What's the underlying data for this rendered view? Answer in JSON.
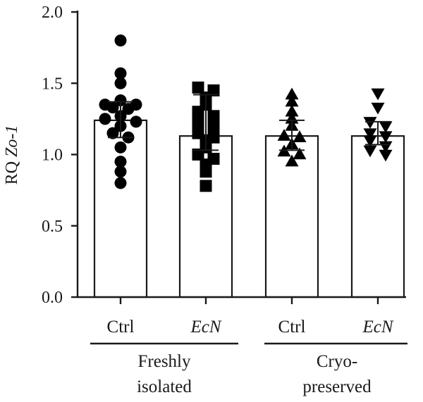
{
  "chart_data": {
    "type": "bar",
    "ylabel_prefix": "RQ ",
    "ylabel_gene": "Zo-1",
    "ylim": [
      0,
      2.0
    ],
    "yticks": [
      "0.0",
      "0.5",
      "1.0",
      "1.5",
      "2.0"
    ],
    "categories": [
      "Ctrl",
      "EcN",
      "Ctrl",
      "EcN"
    ],
    "category_italic": [
      false,
      true,
      false,
      true
    ],
    "groups": [
      {
        "line1": "Freshly",
        "line2": "isolated",
        "spans": [
          0,
          1
        ]
      },
      {
        "line1": "Cryo-",
        "line2": "preserved",
        "spans": [
          2,
          3
        ]
      }
    ],
    "bars": [
      {
        "mean": 1.24,
        "err_low": 1.12,
        "err_high": 1.37,
        "marker": "circle",
        "points": [
          1.8,
          1.57,
          1.5,
          1.38,
          1.35,
          1.35,
          1.33,
          1.32,
          1.27,
          1.25,
          1.23,
          1.2,
          1.15,
          1.12,
          1.05,
          0.95,
          0.88,
          0.8
        ]
      },
      {
        "mean": 1.13,
        "err_low": 1.03,
        "err_high": 1.42,
        "marker": "square",
        "points": [
          1.47,
          1.45,
          1.4,
          1.35,
          1.3,
          1.27,
          1.25,
          1.22,
          1.2,
          1.17,
          1.15,
          1.12,
          1.1,
          1.05,
          1.0,
          0.97,
          0.93,
          0.88,
          0.78
        ]
      },
      {
        "mean": 1.13,
        "err_low": 1.03,
        "err_high": 1.24,
        "marker": "triangle-up",
        "points": [
          1.42,
          1.37,
          1.3,
          1.25,
          1.2,
          1.13,
          1.12,
          1.07,
          1.02,
          1.0,
          0.95
        ]
      },
      {
        "mean": 1.13,
        "err_low": 1.07,
        "err_high": 1.23,
        "marker": "triangle-down",
        "points": [
          1.43,
          1.33,
          1.23,
          1.2,
          1.15,
          1.13,
          1.1,
          1.06,
          1.03,
          1.0
        ]
      }
    ]
  }
}
